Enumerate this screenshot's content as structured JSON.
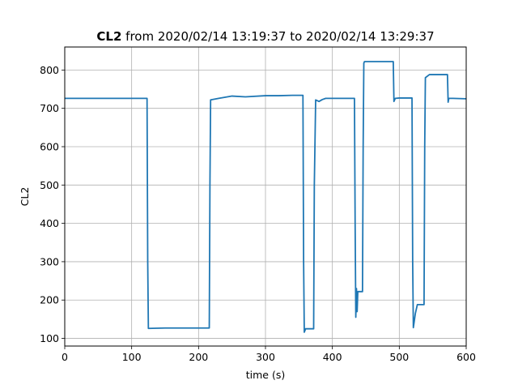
{
  "chart_data": {
    "type": "line",
    "title_bold": "CL2",
    "title_rest": " from 2020/02/14 13:19:37 to 2020/02/14 13:29:37",
    "xlabel": "time (s)",
    "ylabel": "CL2",
    "xlim": [
      0,
      600
    ],
    "ylim": [
      80,
      860
    ],
    "xticks": [
      0,
      100,
      200,
      300,
      400,
      500,
      600
    ],
    "yticks": [
      100,
      200,
      300,
      400,
      500,
      600,
      700,
      800
    ],
    "grid": true,
    "line_color": "#1f77b4",
    "series": [
      {
        "x": [
          0,
          123,
          124,
          125,
          150,
          200,
          216,
          217,
          218,
          230,
          250,
          270,
          300,
          320,
          340,
          356,
          357,
          358,
          360,
          372,
          373,
          375,
          380,
          385,
          390,
          400,
          420,
          433,
          434,
          435,
          436,
          437,
          438,
          440,
          445,
          446,
          447,
          448,
          460,
          490,
          491,
          492,
          494,
          500,
          519,
          520,
          521,
          522,
          524,
          527,
          530,
          537,
          538,
          539,
          545,
          570,
          572,
          573,
          574,
          580,
          600
        ],
        "y": [
          726,
          726,
          300,
          126,
          127,
          127,
          127,
          500,
          722,
          726,
          732,
          730,
          733,
          733,
          734,
          734,
          300,
          116,
          125,
          125,
          500,
          722,
          718,
          723,
          726,
          726,
          726,
          726,
          400,
          155,
          230,
          170,
          222,
          222,
          222,
          600,
          818,
          822,
          822,
          822,
          822,
          718,
          726,
          727,
          727,
          300,
          128,
          140,
          165,
          188,
          188,
          188,
          600,
          780,
          788,
          788,
          788,
          716,
          726,
          726,
          725
        ]
      }
    ]
  }
}
